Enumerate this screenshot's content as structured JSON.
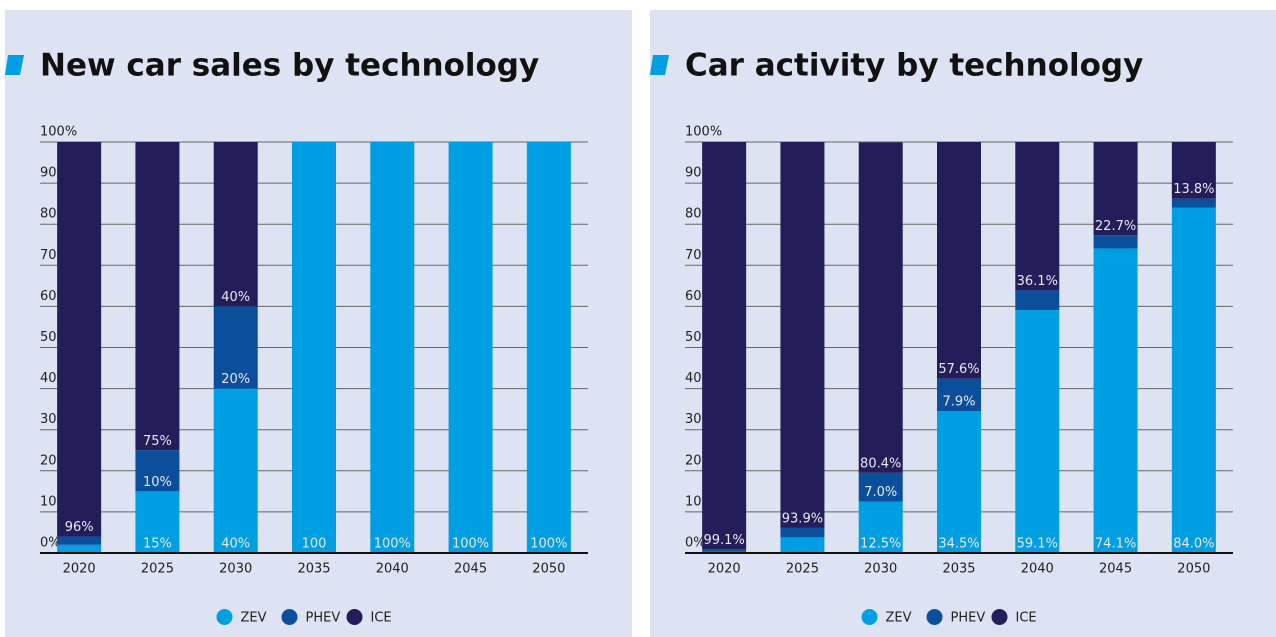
{
  "chart_data": [
    {
      "type": "stacked-bar",
      "title": "New car sales by technology",
      "categories": [
        "2020",
        "2025",
        "2030",
        "2035",
        "2040",
        "2045",
        "2050"
      ],
      "series": [
        {
          "name": "ZEV",
          "color": "#009fe3",
          "values": [
            2,
            15,
            40,
            100,
            100,
            100,
            100
          ],
          "value_labels": [
            null,
            "15%",
            "40%",
            "100",
            "100%",
            "100%",
            "100%"
          ]
        },
        {
          "name": "PHEV",
          "color": "#0b4f9c",
          "values": [
            2,
            10,
            20,
            0,
            0,
            0,
            0
          ],
          "value_labels": [
            null,
            "10%",
            "20%",
            null,
            null,
            null,
            null
          ]
        },
        {
          "name": "ICE",
          "color": "#231e5a",
          "values": [
            96,
            75,
            40,
            0,
            0,
            0,
            0
          ],
          "value_labels": [
            "96%",
            "75%",
            "40%",
            null,
            null,
            null,
            null
          ]
        }
      ],
      "ylim": [
        0,
        100
      ],
      "yticks": [
        {
          "value": 0,
          "label": "0%"
        },
        {
          "value": 10,
          "label": "10%"
        },
        {
          "value": 20,
          "label": "20%"
        },
        {
          "value": 30,
          "label": "30%"
        },
        {
          "value": 40,
          "label": "40%"
        },
        {
          "value": 50,
          "label": "50%"
        },
        {
          "value": 60,
          "label": "60%"
        },
        {
          "value": 70,
          "label": "70%"
        },
        {
          "value": 80,
          "label": "80%"
        },
        {
          "value": 90,
          "label": "90%"
        },
        {
          "value": 100,
          "label": "100%"
        }
      ],
      "grid": true,
      "legend": "bottom"
    },
    {
      "type": "stacked-bar",
      "title": "Car activity by technology",
      "categories": [
        "2020",
        "2025",
        "2030",
        "2035",
        "2040",
        "2045",
        "2050"
      ],
      "series": [
        {
          "name": "ZEV",
          "color": "#009fe3",
          "values": [
            0.3,
            3.8,
            12.5,
            34.5,
            59.1,
            74.1,
            84.0
          ],
          "value_labels": [
            null,
            null,
            "12.5%",
            "34.5%",
            "59.1%",
            "74.1%",
            "84.0%"
          ]
        },
        {
          "name": "PHEV",
          "color": "#0b4f9c",
          "values": [
            0.6,
            2.3,
            7.0,
            7.9,
            4.8,
            3.2,
            2.2
          ],
          "value_labels": [
            null,
            null,
            "7.0%",
            "7.9%",
            null,
            null,
            null
          ]
        },
        {
          "name": "ICE",
          "color": "#231e5a",
          "values": [
            99.1,
            93.9,
            80.4,
            57.6,
            36.1,
            22.7,
            13.8
          ],
          "value_labels": [
            "99.1%",
            "93.9%",
            "80.4%",
            "57.6%",
            "36.1%",
            "22.7%",
            "13.8%"
          ]
        }
      ],
      "ylim": [
        0,
        100
      ],
      "yticks": [
        {
          "value": 0,
          "label": "0%"
        },
        {
          "value": 10,
          "label": "10%"
        },
        {
          "value": 20,
          "label": "20%"
        },
        {
          "value": 30,
          "label": "30%"
        },
        {
          "value": 40,
          "label": "40%"
        },
        {
          "value": 50,
          "label": "50%"
        },
        {
          "value": 60,
          "label": "60%"
        },
        {
          "value": 70,
          "label": "70%"
        },
        {
          "value": 80,
          "label": "80%"
        },
        {
          "value": 90,
          "label": "90%"
        },
        {
          "value": 100,
          "label": "100%"
        }
      ],
      "grid": true,
      "legend": "bottom"
    }
  ]
}
